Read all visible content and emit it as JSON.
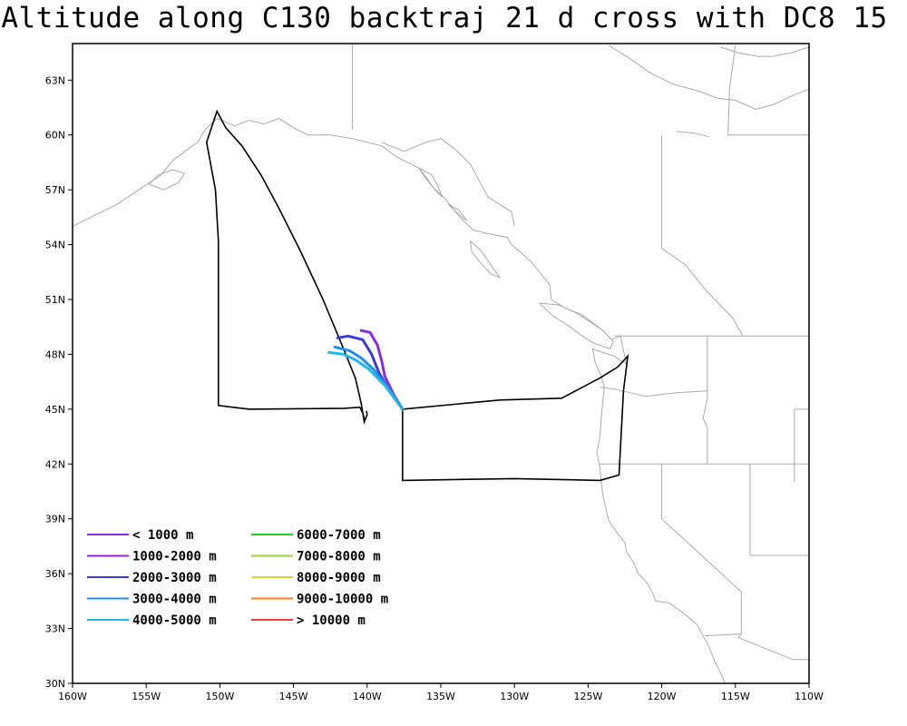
{
  "title": "Altitude along C130 backtraj 21 d cross with DC8 15",
  "map": {
    "lon_range": [
      -160,
      -110
    ],
    "lat_range": [
      30,
      65
    ],
    "lon_ticks": [
      {
        "value": -160,
        "label": "160W"
      },
      {
        "value": -155,
        "label": "155W"
      },
      {
        "value": -150,
        "label": "150W"
      },
      {
        "value": -145,
        "label": "145W"
      },
      {
        "value": -140,
        "label": "140W"
      },
      {
        "value": -135,
        "label": "135W"
      },
      {
        "value": -130,
        "label": "130W"
      },
      {
        "value": -125,
        "label": "125W"
      },
      {
        "value": -120,
        "label": "120W"
      },
      {
        "value": -115,
        "label": "115W"
      },
      {
        "value": -110,
        "label": "110W"
      }
    ],
    "lat_ticks": [
      {
        "value": 30,
        "label": "30N"
      },
      {
        "value": 33,
        "label": "33N"
      },
      {
        "value": 36,
        "label": "36N"
      },
      {
        "value": 39,
        "label": "39N"
      },
      {
        "value": 42,
        "label": "42N"
      },
      {
        "value": 45,
        "label": "45N"
      },
      {
        "value": 48,
        "label": "48N"
      },
      {
        "value": 51,
        "label": "51N"
      },
      {
        "value": 54,
        "label": "54N"
      },
      {
        "value": 57,
        "label": "57N"
      },
      {
        "value": 60,
        "label": "60N"
      },
      {
        "value": 63,
        "label": "63N"
      }
    ],
    "coastline_color": "#aaaaaa",
    "flight_track_color": "#000000",
    "flight_track": [
      [
        -140.2,
        44.5
      ],
      [
        -140.3,
        44.8
      ],
      [
        -140.5,
        45.1
      ],
      [
        -141.5,
        45.05
      ],
      [
        -148,
        45.0
      ],
      [
        -150.1,
        45.2
      ],
      [
        -150.1,
        54.2
      ],
      [
        -150.3,
        57.0
      ],
      [
        -150.9,
        59.6
      ],
      [
        -150.2,
        61.3
      ],
      [
        -149.6,
        60.4
      ],
      [
        -148.5,
        59.4
      ],
      [
        -147.2,
        57.8
      ],
      [
        -146.0,
        56.0
      ],
      [
        -144.5,
        53.6
      ],
      [
        -143.0,
        51.0
      ],
      [
        -141.6,
        48.3
      ],
      [
        -140.8,
        46.7
      ],
      [
        -140.4,
        45.3
      ],
      [
        -140.2,
        44.3
      ],
      [
        -140.0,
        44.7
      ],
      [
        -140.05,
        44.9
      ]
    ],
    "flight_track_2": [
      [
        -137.6,
        45.0
      ],
      [
        -137.6,
        41.1
      ],
      [
        -130.0,
        41.2
      ],
      [
        -124.2,
        41.1
      ],
      [
        -122.9,
        41.4
      ],
      [
        -122.6,
        46.0
      ],
      [
        -122.3,
        47.9
      ],
      [
        -123.0,
        47.3
      ],
      [
        -124.2,
        46.7
      ],
      [
        -126.8,
        45.6
      ],
      [
        -131.0,
        45.5
      ],
      [
        -137.6,
        45.0
      ]
    ],
    "trajectories": [
      {
        "color": "#8a2be2",
        "points": [
          [
            -137.6,
            45.0
          ],
          [
            -138.2,
            45.8
          ],
          [
            -138.8,
            46.8
          ],
          [
            -139.0,
            47.6
          ],
          [
            -139.3,
            48.5
          ],
          [
            -139.8,
            49.2
          ],
          [
            -140.4,
            49.3
          ]
        ]
      },
      {
        "color": "#3a3ad8",
        "points": [
          [
            -137.6,
            45.0
          ],
          [
            -138.4,
            45.9
          ],
          [
            -139.2,
            47.0
          ],
          [
            -139.7,
            48.0
          ],
          [
            -140.3,
            48.8
          ],
          [
            -141.3,
            49.0
          ],
          [
            -142.0,
            48.9
          ]
        ]
      },
      {
        "color": "#2090e8",
        "points": [
          [
            -137.6,
            45.0
          ],
          [
            -138.6,
            46.2
          ],
          [
            -139.6,
            47.2
          ],
          [
            -140.4,
            47.8
          ],
          [
            -141.2,
            48.2
          ],
          [
            -142.2,
            48.4
          ]
        ]
      },
      {
        "color": "#20b8e8",
        "points": [
          [
            -137.6,
            45.0
          ],
          [
            -138.8,
            46.3
          ],
          [
            -139.9,
            47.2
          ],
          [
            -140.8,
            47.7
          ],
          [
            -141.6,
            48.0
          ],
          [
            -142.6,
            48.1
          ]
        ]
      }
    ],
    "legend": {
      "columns": [
        [
          {
            "label": "< 1000 m",
            "color": "#8a2be2"
          },
          {
            "label": "1000-2000 m",
            "color": "#9a20d8"
          },
          {
            "label": "2000-3000 m",
            "color": "#3a3ad8"
          },
          {
            "label": "3000-4000 m",
            "color": "#2090e8"
          },
          {
            "label": "4000-5000 m",
            "color": "#20b8e8"
          }
        ],
        [
          {
            "label": "6000-7000 m",
            "color": "#20d020"
          },
          {
            "label": "7000-8000 m",
            "color": "#a0d040"
          },
          {
            "label": "8000-9000 m",
            "color": "#e0d040"
          },
          {
            "label": "9000-10000 m",
            "color": "#f08020"
          },
          {
            "label": "> 10000 m",
            "color": "#f04040"
          }
        ]
      ]
    }
  }
}
